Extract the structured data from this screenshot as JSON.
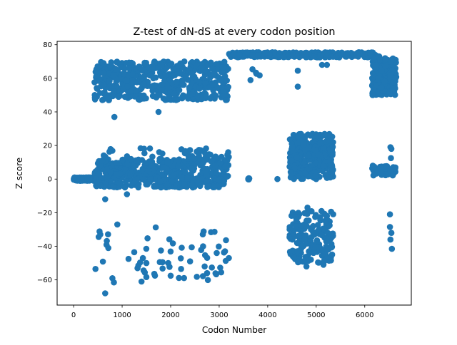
{
  "chart_data": {
    "type": "scatter",
    "title": "Z-test of dN-dS at every codon position",
    "xlabel": "Codon Number",
    "ylabel": "Z score",
    "xlim": [
      -340,
      6960
    ],
    "ylim": [
      -75,
      82
    ],
    "xticks": [
      0,
      1000,
      2000,
      3000,
      4000,
      5000,
      6000,
      7000
    ],
    "yticks": [
      -60,
      -40,
      -20,
      0,
      20,
      40,
      60,
      80
    ],
    "grid": false,
    "color": "#1f77b4",
    "clusters": [
      {
        "x": [
          0,
          420
        ],
        "y": [
          -1,
          1
        ],
        "n": 150
      },
      {
        "x": [
          430,
          3200
        ],
        "y": [
          -5,
          12
        ],
        "n": 520
      },
      {
        "x": [
          430,
          3200
        ],
        "y": [
          12,
          19
        ],
        "n": 40
      },
      {
        "x": [
          430,
          3200
        ],
        "y": [
          47,
          70
        ],
        "n": 520
      },
      {
        "x": [
          430,
          3200
        ],
        "y": [
          -62,
          -28
        ],
        "n": 55
      },
      {
        "x": [
          3200,
          6300
        ],
        "y": [
          72.5,
          75.5
        ],
        "n": 360
      },
      {
        "x": [
          3600,
          3620
        ],
        "y": [
          -0.5,
          0.5
        ],
        "n": 8
      },
      {
        "x": [
          3600,
          3900
        ],
        "y": [
          58,
          66
        ],
        "n": 5
      },
      {
        "x": [
          4450,
          5350
        ],
        "y": [
          0,
          27
        ],
        "n": 330
      },
      {
        "x": [
          4450,
          5350
        ],
        "y": [
          -50,
          -19
        ],
        "n": 180
      },
      {
        "x": [
          6150,
          6650
        ],
        "y": [
          50,
          72
        ],
        "n": 260
      },
      {
        "x": [
          6150,
          6650
        ],
        "y": [
          2,
          8
        ],
        "n": 45
      }
    ],
    "points": [
      [
        840,
        37
      ],
      [
        1750,
        40
      ],
      [
        4620,
        55
      ],
      [
        4620,
        64.5
      ],
      [
        5120,
        68
      ],
      [
        5220,
        68
      ],
      [
        4200,
        0
      ],
      [
        3600,
        0
      ],
      [
        1100,
        -9
      ],
      [
        650,
        -12
      ],
      [
        1800,
        -5
      ],
      [
        650,
        -68
      ],
      [
        450,
        -53.5
      ],
      [
        830,
        -61.5
      ],
      [
        1400,
        -61
      ],
      [
        2000,
        -57.5
      ],
      [
        1250,
        -43.5
      ],
      [
        1500,
        -50
      ],
      [
        1950,
        -50
      ],
      [
        2700,
        -52
      ],
      [
        2750,
        -56
      ],
      [
        3200,
        -47
      ],
      [
        2950,
        -44
      ],
      [
        2400,
        -49
      ],
      [
        1800,
        -42.5
      ],
      [
        550,
        -33
      ],
      [
        900,
        -27
      ],
      [
        4550,
        -47
      ],
      [
        4650,
        -49
      ],
      [
        4800,
        -52
      ],
      [
        4850,
        -43
      ],
      [
        5150,
        -51
      ],
      [
        4820,
        -17
      ],
      [
        6530,
        19
      ],
      [
        6550,
        18
      ],
      [
        6540,
        12.5
      ],
      [
        6520,
        -21
      ],
      [
        6520,
        -28.5
      ],
      [
        6550,
        -32
      ],
      [
        6530,
        -36
      ],
      [
        6560,
        -41.5
      ]
    ]
  }
}
